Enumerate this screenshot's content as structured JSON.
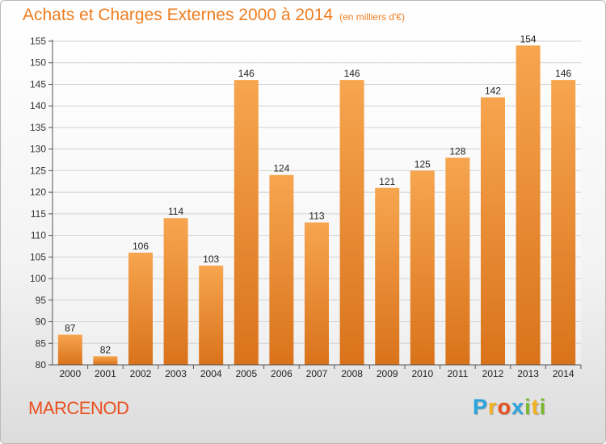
{
  "title": "Achats et Charges Externes 2000 à 2014",
  "unit": "(en milliers d'€)",
  "commune": "MARCENOD",
  "brand": {
    "letters": [
      "P",
      "r",
      "o",
      "x",
      "i",
      "t",
      "i"
    ],
    "colors": [
      "#2aa4dc",
      "#f2b21b",
      "#e8501e",
      "#2aa4dc",
      "#7cb82f",
      "#f2b21b",
      "#7cb82f"
    ]
  },
  "colors": {
    "bar_light": "#f7a54f",
    "bar_dark": "#d9731b",
    "title": "#f07d1e",
    "commune": "#e8501e"
  },
  "chart_data": {
    "type": "bar",
    "categories": [
      "2000",
      "2001",
      "2002",
      "2003",
      "2004",
      "2005",
      "2006",
      "2007",
      "2008",
      "2009",
      "2010",
      "2011",
      "2012",
      "2013",
      "2014"
    ],
    "values": [
      87,
      82,
      106,
      114,
      103,
      146,
      124,
      113,
      146,
      121,
      125,
      128,
      142,
      154,
      146
    ],
    "ylim": [
      80,
      155
    ],
    "yticks": [
      80,
      85,
      90,
      95,
      100,
      105,
      110,
      115,
      120,
      125,
      130,
      135,
      140,
      145,
      150,
      155
    ],
    "grid": true
  }
}
